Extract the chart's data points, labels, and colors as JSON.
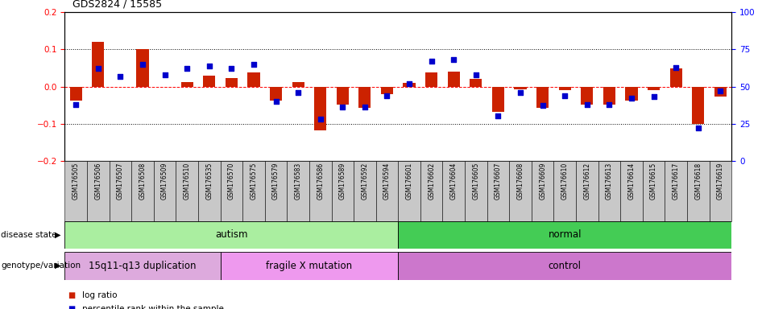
{
  "title": "GDS2824 / 15585",
  "samples": [
    "GSM176505",
    "GSM176506",
    "GSM176507",
    "GSM176508",
    "GSM176509",
    "GSM176510",
    "GSM176535",
    "GSM176570",
    "GSM176575",
    "GSM176579",
    "GSM176583",
    "GSM176586",
    "GSM176589",
    "GSM176592",
    "GSM176594",
    "GSM176601",
    "GSM176602",
    "GSM176604",
    "GSM176605",
    "GSM176607",
    "GSM176608",
    "GSM176609",
    "GSM176610",
    "GSM176612",
    "GSM176613",
    "GSM176614",
    "GSM176615",
    "GSM176617",
    "GSM176618",
    "GSM176619"
  ],
  "log_ratio": [
    -0.038,
    0.12,
    0.0,
    0.102,
    0.0,
    0.012,
    0.03,
    0.022,
    0.038,
    -0.038,
    0.012,
    -0.118,
    -0.048,
    -0.058,
    -0.02,
    0.01,
    0.038,
    0.04,
    0.02,
    -0.068,
    -0.008,
    -0.058,
    -0.01,
    -0.048,
    -0.048,
    -0.038,
    -0.01,
    0.048,
    -0.1,
    -0.028
  ],
  "percentile": [
    38,
    62,
    57,
    65,
    58,
    62,
    64,
    62,
    65,
    40,
    46,
    28,
    36,
    36,
    44,
    52,
    67,
    68,
    58,
    30,
    46,
    37,
    44,
    38,
    38,
    42,
    43,
    63,
    22,
    47
  ],
  "disease_state_groups": [
    {
      "label": "autism",
      "start": 0,
      "end": 14,
      "color": "#AAEEA0"
    },
    {
      "label": "normal",
      "start": 15,
      "end": 29,
      "color": "#44CC55"
    }
  ],
  "genotype_groups": [
    {
      "label": "15q11-q13 duplication",
      "start": 0,
      "end": 6,
      "color": "#DDAADD"
    },
    {
      "label": "fragile X mutation",
      "start": 7,
      "end": 14,
      "color": "#EE99EE"
    },
    {
      "label": "control",
      "start": 15,
      "end": 29,
      "color": "#CC77CC"
    }
  ],
  "ylim_left": [
    -0.2,
    0.2
  ],
  "ylim_right": [
    0,
    100
  ],
  "yticks_left": [
    -0.2,
    -0.1,
    0.0,
    0.1,
    0.2
  ],
  "yticks_right": [
    0,
    25,
    50,
    75,
    100
  ],
  "bar_color": "#CC2200",
  "dot_color": "#0000CC",
  "tick_bg_color": "#C8C8C8",
  "legend_items": [
    {
      "label": "log ratio",
      "color": "#CC2200"
    },
    {
      "label": "percentile rank within the sample",
      "color": "#0000CC"
    }
  ],
  "label_disease": "disease state",
  "label_genotype": "genotype/variation"
}
